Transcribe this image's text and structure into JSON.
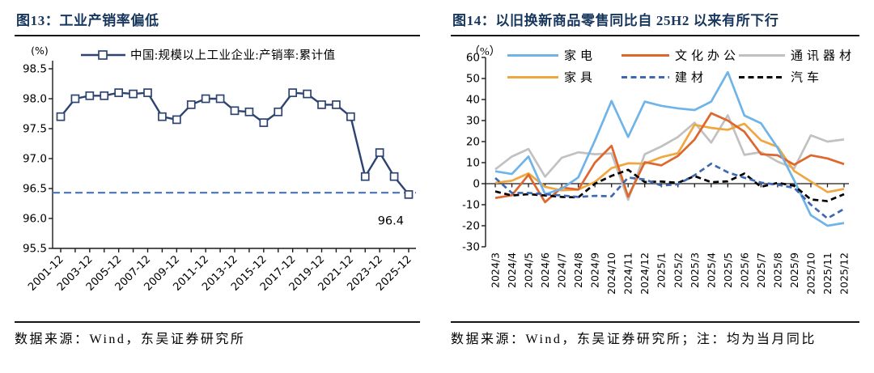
{
  "page": {
    "figures": [
      {
        "title": "图13：工业产销率偏低",
        "footer": "数据来源：Wind，东吴证券研究所"
      },
      {
        "title": "图14：以旧换新商品零售同比自 25H2 以来有所下行",
        "footer": "数据来源：Wind，东吴证券研究所；注：均为当月同比"
      }
    ]
  },
  "chart_data": [
    {
      "type": "line",
      "title": "图13：工业产销率偏低",
      "unit_label": "(%)",
      "legend": "中国:规模以上工业企业:产销率:累计值",
      "legend_position": "top",
      "grid": false,
      "line_color": "#2E4470",
      "marker": "open-square",
      "categories": [
        "2001-12",
        "2002-12",
        "2003-12",
        "2004-12",
        "2005-12",
        "2006-12",
        "2007-12",
        "2008-12",
        "2009-12",
        "2010-12",
        "2011-12",
        "2012-12",
        "2013-12",
        "2014-12",
        "2015-12",
        "2016-12",
        "2017-12",
        "2018-12",
        "2019-12",
        "2020-12",
        "2021-12",
        "2022-12",
        "2023-12",
        "2024-12",
        "2025-12"
      ],
      "shown_tick_indices": [
        0,
        2,
        4,
        6,
        8,
        10,
        12,
        14,
        16,
        18,
        20,
        22,
        24
      ],
      "values": [
        97.7,
        98.0,
        98.05,
        98.05,
        98.1,
        98.08,
        98.1,
        97.7,
        97.65,
        97.9,
        98.0,
        98.0,
        97.8,
        97.78,
        97.6,
        97.78,
        98.1,
        98.08,
        97.9,
        97.9,
        97.7,
        96.7,
        97.1,
        96.7,
        96.4
      ],
      "ref_line": {
        "value": 96.43,
        "color": "#4472C4",
        "style": "dashed"
      },
      "annotation": {
        "text": "96.4",
        "at_index": 24,
        "y": 96.1
      },
      "ylim": [
        95.5,
        98.5
      ],
      "ytick_step": 0.5,
      "xlabel": "",
      "ylabel": ""
    },
    {
      "type": "line",
      "title": "图14：以旧换新商品零售同比自 25H2 以来有所下行",
      "unit_label": "（%）",
      "legend_position": "top",
      "grid": false,
      "categories": [
        "2024/3",
        "2024/4",
        "2024/5",
        "2024/6",
        "2024/7",
        "2024/8",
        "2024/9",
        "2024/10",
        "2024/11",
        "2024/12",
        "2025/1",
        "2025/2",
        "2025/3",
        "2025/4",
        "2025/5",
        "2025/6",
        "2025/7",
        "2025/8",
        "2025/9",
        "2025/10",
        "2025/11",
        "2025/12"
      ],
      "series": [
        {
          "name": "家电",
          "color": "#6FB4E8",
          "dash": null,
          "values": [
            5.9,
            4.6,
            12.9,
            -5.0,
            -2.4,
            3.0,
            20.5,
            39.3,
            22.2,
            39.0,
            37.0,
            35.8,
            35.0,
            39.0,
            53.0,
            32.4,
            28.7,
            17.0,
            1.5,
            -15.0,
            -20.0,
            -18.7
          ]
        },
        {
          "name": "文化办公",
          "color": "#DE672D",
          "dash": null,
          "values": [
            -6.8,
            -5.5,
            4.2,
            -8.8,
            -1.8,
            -2.8,
            10.0,
            18.0,
            -6.2,
            10.2,
            8.7,
            13.2,
            21.0,
            33.5,
            30.0,
            24.7,
            14.0,
            13.5,
            9.0,
            13.5,
            12.0,
            9.3
          ]
        },
        {
          "name": "通讯器材",
          "color": "#C1C1C1",
          "dash": null,
          "values": [
            6.8,
            12.9,
            16.5,
            3.3,
            12.3,
            14.9,
            14.0,
            14.4,
            -7.7,
            14.0,
            17.7,
            22.2,
            29.0,
            19.5,
            32.5,
            13.7,
            15.0,
            10.5,
            7.3,
            23.0,
            20.0,
            21.0
          ]
        },
        {
          "name": "家具",
          "color": "#F0A73F",
          "dash": null,
          "values": [
            0.4,
            1.4,
            4.9,
            -1.5,
            -3.2,
            -2.8,
            0.8,
            7.4,
            9.7,
            9.5,
            12.6,
            14.5,
            28.0,
            26.5,
            25.6,
            28.5,
            20.6,
            17.5,
            6.0,
            1.0,
            -4.0,
            -2.5
          ]
        },
        {
          "name": "建材",
          "color": "#3E68B2",
          "dash": "7,4.5",
          "values": [
            2.7,
            -4.4,
            -4.4,
            -5.0,
            -5.6,
            -6.3,
            -5.8,
            -6.0,
            2.9,
            2.0,
            -0.9,
            -0.3,
            4.0,
            9.5,
            5.4,
            2.8,
            0.5,
            -0.5,
            -2.0,
            -10.0,
            -16.5,
            -12.0
          ]
        },
        {
          "name": "汽车",
          "color": "#000000",
          "dash": "7,4.5",
          "values": [
            -3.7,
            -5.6,
            -5.0,
            -5.6,
            -6.3,
            -6.5,
            0.0,
            3.7,
            6.6,
            0.8,
            1.0,
            0.4,
            3.6,
            0.7,
            1.1,
            4.8,
            -1.5,
            0.4,
            -1.0,
            -7.5,
            -8.3,
            -5.0
          ]
        }
      ],
      "legend_rows": [
        [
          "家电",
          "文化办公",
          "通讯器材"
        ],
        [
          "家具",
          "建材",
          "汽车"
        ]
      ],
      "ylim": [
        -30,
        60
      ],
      "ytick_step": 10,
      "xlabel": "",
      "ylabel": ""
    }
  ]
}
